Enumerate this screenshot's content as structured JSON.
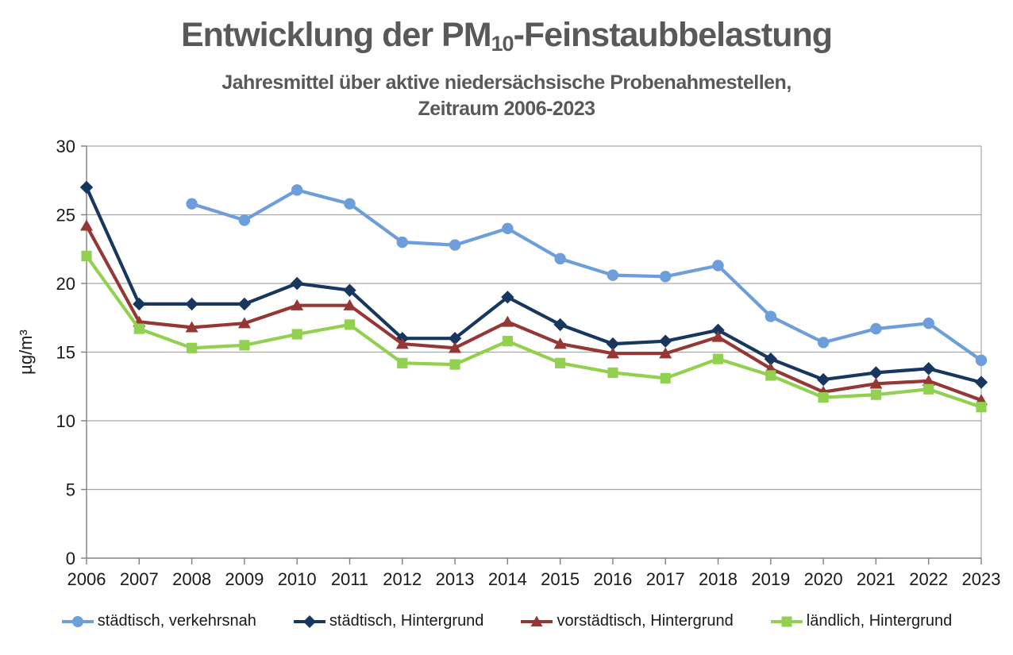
{
  "header": {
    "title_prefix": "Entwicklung der PM",
    "title_sub": "10",
    "title_suffix": "-Feinstaubbelastung",
    "subtitle_line1": "Jahresmittel über aktive niedersächsische Probenahmestellen,",
    "subtitle_line2": "Zeitraum 2006-2023"
  },
  "chart_data": {
    "type": "line",
    "title": "Entwicklung der PM10-Feinstaubbelastung",
    "subtitle": "Jahresmittel über aktive niedersächsische Probenahmestellen, Zeitraum 2006-2023",
    "xlabel": "",
    "ylabel": "µg/m³",
    "ylim": [
      0,
      30
    ],
    "ytick_interval": 5,
    "ytick_labels": [
      "0",
      "5",
      "10",
      "15",
      "20",
      "25",
      "30"
    ],
    "grid": "horizontal",
    "legend_position": "bottom",
    "categories": [
      "2006",
      "2007",
      "2008",
      "2009",
      "2010",
      "2011",
      "2012",
      "2013",
      "2014",
      "2015",
      "2016",
      "2017",
      "2018",
      "2019",
      "2020",
      "2021",
      "2022",
      "2023"
    ],
    "series": [
      {
        "name": "städtisch, verkehrsnah",
        "color": "#6D9EDB",
        "marker": "circle",
        "values": [
          null,
          null,
          25.8,
          24.6,
          26.8,
          25.8,
          23.0,
          22.8,
          24.0,
          21.8,
          20.6,
          20.5,
          21.3,
          17.6,
          15.7,
          16.7,
          17.1,
          14.4
        ]
      },
      {
        "name": "städtisch, Hintergrund",
        "color": "#17375E",
        "marker": "diamond",
        "values": [
          27.0,
          18.5,
          18.5,
          18.5,
          20.0,
          19.5,
          16.0,
          16.0,
          19.0,
          17.0,
          15.6,
          15.8,
          16.6,
          14.5,
          13.0,
          13.5,
          13.8,
          12.8
        ]
      },
      {
        "name": "vorstädtisch, Hintergrund",
        "color": "#953735",
        "marker": "triangle",
        "values": [
          24.2,
          17.2,
          16.8,
          17.1,
          18.4,
          18.4,
          15.6,
          15.3,
          17.2,
          15.6,
          14.9,
          14.9,
          16.1,
          13.8,
          12.1,
          12.7,
          12.9,
          11.5
        ]
      },
      {
        "name": "ländlich, Hintergrund",
        "color": "#92D050",
        "marker": "square",
        "values": [
          22.0,
          16.7,
          15.3,
          15.5,
          16.3,
          17.0,
          14.2,
          14.1,
          15.8,
          14.2,
          13.5,
          13.1,
          14.5,
          13.3,
          11.7,
          11.9,
          12.3,
          11.0
        ]
      }
    ],
    "colors": {
      "title_text": "#595959",
      "axis_text": "#1a1a1a",
      "gridline": "#A6A6A6",
      "axis_line": "#808080"
    }
  }
}
